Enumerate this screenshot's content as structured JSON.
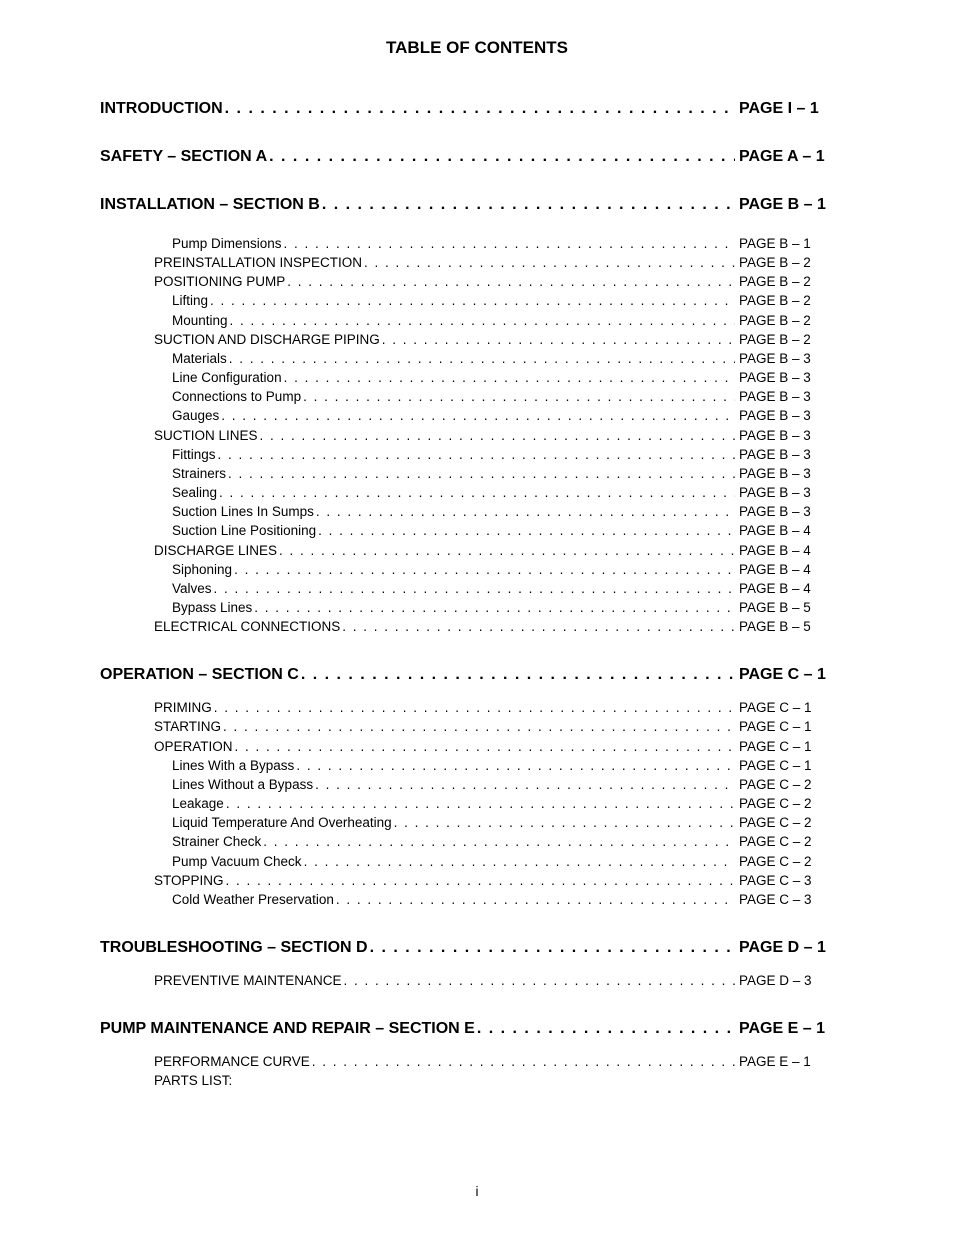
{
  "title": "TABLE OF CONTENTS",
  "page_marker": "i",
  "dots_fill": ". . . . . . . . . . . . . . . . . . . . . . . . . . . . . . . . . . . . . . . . . . . . . . . . . . . . . . . . . . . . . . . . . . . . . . . . . . . . . . . . . . . . . . . . . . . . . . . . . . . . . . . . . . . . . . . . . . . . . . . .",
  "entries": [
    {
      "label": "INTRODUCTION",
      "page": "PAGE I – 1",
      "type": "section",
      "first": true
    },
    {
      "label": "SAFETY – SECTION A",
      "page": "PAGE A – 1",
      "type": "section"
    },
    {
      "label": "INSTALLATION – SECTION B",
      "page": "PAGE B – 1",
      "type": "section"
    },
    {
      "label": "Pump Dimensions",
      "page": "PAGE B – 1",
      "type": "sub",
      "indent": 2
    },
    {
      "label": "PREINSTALLATION INSPECTION",
      "page": "PAGE B – 2",
      "type": "sub",
      "indent": 1
    },
    {
      "label": "POSITIONING PUMP",
      "page": "PAGE B – 2",
      "type": "sub",
      "indent": 1
    },
    {
      "label": "Lifting",
      "page": "PAGE B – 2",
      "type": "sub",
      "indent": 2
    },
    {
      "label": "Mounting",
      "page": "PAGE B – 2",
      "type": "sub",
      "indent": 2
    },
    {
      "label": "SUCTION AND DISCHARGE PIPING",
      "page": "PAGE B – 2",
      "type": "sub",
      "indent": 1
    },
    {
      "label": "Materials",
      "page": "PAGE B – 3",
      "type": "sub",
      "indent": 2
    },
    {
      "label": "Line Configuration",
      "page": "PAGE B – 3",
      "type": "sub",
      "indent": 2
    },
    {
      "label": "Connections to Pump",
      "page": "PAGE B – 3",
      "type": "sub",
      "indent": 2
    },
    {
      "label": "Gauges",
      "page": "PAGE B – 3",
      "type": "sub",
      "indent": 2
    },
    {
      "label": "SUCTION LINES",
      "page": "PAGE B – 3",
      "type": "sub",
      "indent": 1
    },
    {
      "label": "Fittings",
      "page": "PAGE B – 3",
      "type": "sub",
      "indent": 2
    },
    {
      "label": "Strainers",
      "page": "PAGE B – 3",
      "type": "sub",
      "indent": 2
    },
    {
      "label": "Sealing",
      "page": "PAGE B – 3",
      "type": "sub",
      "indent": 2
    },
    {
      "label": "Suction Lines In Sumps",
      "page": "PAGE B – 3",
      "type": "sub",
      "indent": 2
    },
    {
      "label": "Suction Line Positioning",
      "page": "PAGE B – 4",
      "type": "sub",
      "indent": 2
    },
    {
      "label": "DISCHARGE LINES",
      "page": "PAGE B – 4",
      "type": "sub",
      "indent": 1
    },
    {
      "label": "Siphoning",
      "page": "PAGE B – 4",
      "type": "sub",
      "indent": 2
    },
    {
      "label": "Valves",
      "page": "PAGE B – 4",
      "type": "sub",
      "indent": 2
    },
    {
      "label": "Bypass Lines",
      "page": "PAGE B – 5",
      "type": "sub",
      "indent": 2
    },
    {
      "label": "ELECTRICAL CONNECTIONS",
      "page": "PAGE B – 5",
      "type": "sub",
      "indent": 1
    },
    {
      "label": "OPERATION – SECTION C",
      "page": "PAGE C – 1",
      "type": "section",
      "tight": true
    },
    {
      "label": "PRIMING",
      "page": "PAGE C – 1",
      "type": "sub",
      "indent": 1
    },
    {
      "label": "STARTING",
      "page": "PAGE C – 1",
      "type": "sub",
      "indent": 1
    },
    {
      "label": "OPERATION",
      "page": "PAGE C – 1",
      "type": "sub",
      "indent": 1
    },
    {
      "label": "Lines With a Bypass",
      "page": "PAGE C – 1",
      "type": "sub",
      "indent": 2
    },
    {
      "label": "Lines Without a Bypass",
      "page": "PAGE C – 2",
      "type": "sub",
      "indent": 2
    },
    {
      "label": "Leakage",
      "page": "PAGE C – 2",
      "type": "sub",
      "indent": 2
    },
    {
      "label": "Liquid Temperature And Overheating",
      "page": "PAGE C – 2",
      "type": "sub",
      "indent": 2
    },
    {
      "label": "Strainer Check",
      "page": "PAGE C – 2",
      "type": "sub",
      "indent": 2
    },
    {
      "label": "Pump Vacuum Check",
      "page": "PAGE C – 2",
      "type": "sub",
      "indent": 2
    },
    {
      "label": "STOPPING",
      "page": "PAGE C – 3",
      "type": "sub",
      "indent": 1
    },
    {
      "label": "Cold Weather Preservation",
      "page": "PAGE C – 3",
      "type": "sub",
      "indent": 2
    },
    {
      "label": "TROUBLESHOOTING – SECTION D",
      "page": "PAGE D – 1",
      "type": "section",
      "tight": true
    },
    {
      "label": "PREVENTIVE MAINTENANCE",
      "page": "PAGE D – 3",
      "type": "sub",
      "indent": 1
    },
    {
      "label": "PUMP MAINTENANCE AND REPAIR – SECTION E",
      "page": "PAGE E – 1",
      "type": "section",
      "tight": true
    },
    {
      "label": "PERFORMANCE CURVE",
      "page": "PAGE E – 1",
      "type": "sub",
      "indent": 1
    },
    {
      "label": "PARTS LIST:",
      "page": "",
      "type": "sub",
      "indent": 1,
      "no_page": true
    }
  ]
}
